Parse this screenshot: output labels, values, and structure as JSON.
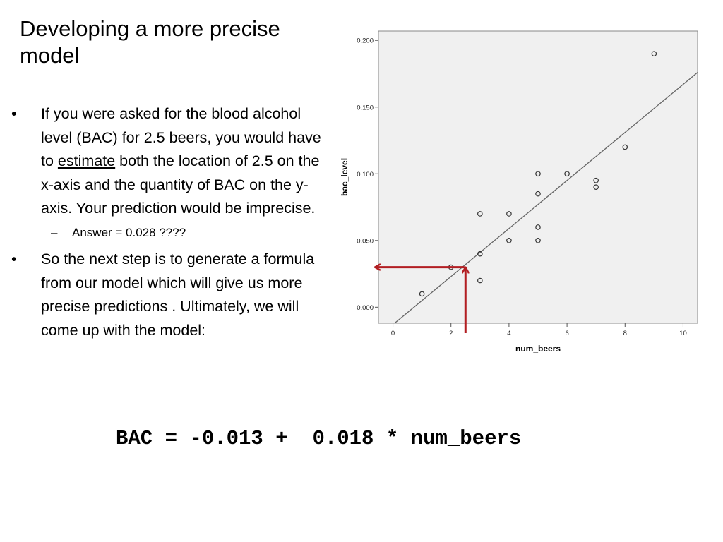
{
  "slide": {
    "title": "Developing a more precise model",
    "bullet1": {
      "marker": "•",
      "text_before": "If you were asked for the blood alcohol level (BAC) for 2.5 beers, you would have to ",
      "underlined": "estimate",
      "text_after": " both the location of 2.5 on the x-axis and the quantity of BAC on the y-axis. Your prediction would be imprecise."
    },
    "sub_bullet": {
      "marker": "–",
      "text": "Answer = 0.028 ????"
    },
    "bullet2": {
      "marker": "•",
      "text": "So the next step is to generate a formula from our model which will give us more precise predictions . Ultimately, we will come up with the model:"
    },
    "formula": "BAC = -0.013 +  0.018 * num_beers"
  },
  "chart_data": {
    "type": "scatter",
    "xlabel": "num_beers",
    "ylabel": "bac_level",
    "xlim": [
      -0.5,
      10.5
    ],
    "ylim": [
      -0.012,
      0.207
    ],
    "xticks": [
      0,
      2,
      4,
      6,
      8,
      10
    ],
    "yticks": [
      0.0,
      0.05,
      0.1,
      0.15,
      0.2
    ],
    "xticklabels": [
      "0",
      "2",
      "4",
      "6",
      "8",
      "10"
    ],
    "yticklabels": [
      "0.000",
      "0.050",
      "0.100",
      "0.150",
      "0.200"
    ],
    "grid": false,
    "points": [
      {
        "x": 1,
        "y": 0.01
      },
      {
        "x": 2,
        "y": 0.03
      },
      {
        "x": 3,
        "y": 0.02
      },
      {
        "x": 3,
        "y": 0.04
      },
      {
        "x": 3,
        "y": 0.07
      },
      {
        "x": 4,
        "y": 0.05
      },
      {
        "x": 4,
        "y": 0.07
      },
      {
        "x": 5,
        "y": 0.05
      },
      {
        "x": 5,
        "y": 0.06
      },
      {
        "x": 5,
        "y": 0.085
      },
      {
        "x": 5,
        "y": 0.1
      },
      {
        "x": 6,
        "y": 0.1
      },
      {
        "x": 7,
        "y": 0.09
      },
      {
        "x": 7,
        "y": 0.095
      },
      {
        "x": 8,
        "y": 0.12
      },
      {
        "x": 9,
        "y": 0.19
      }
    ],
    "fit_line": {
      "intercept": -0.013,
      "slope": 0.018
    },
    "annotation": {
      "x": 2.5,
      "y": 0.03,
      "color": "#b21e22"
    },
    "colors": {
      "plot_bg": "#f0f0f0",
      "points": "#333333",
      "line": "#666666"
    }
  }
}
